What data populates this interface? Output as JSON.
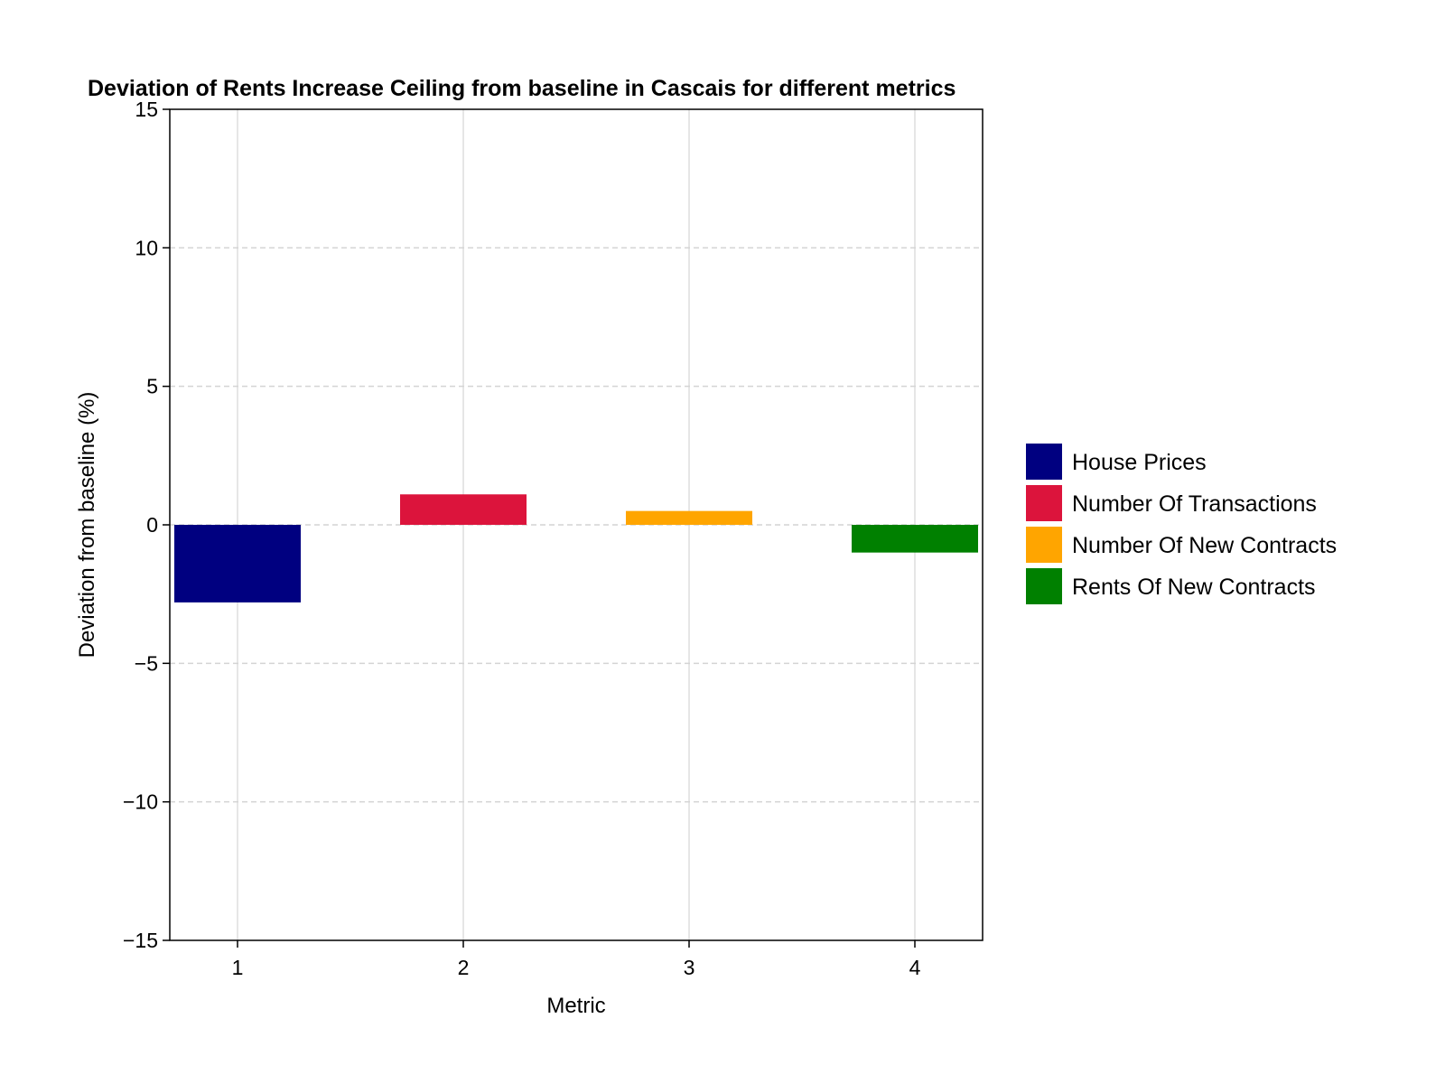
{
  "chart_data": {
    "type": "bar",
    "title": "Deviation of Rents Increase Ceiling from baseline in Cascais for different metrics",
    "xlabel": "Metric",
    "ylabel": "Deviation from baseline (%)",
    "ylim": [
      -15,
      15
    ],
    "xlim": [
      0.7,
      4.3
    ],
    "yticks": [
      -15,
      -10,
      -5,
      0,
      5,
      10,
      15
    ],
    "ytick_labels": [
      "−15",
      "−10",
      "−5",
      "0",
      "5",
      "10",
      "15"
    ],
    "xticks": [
      1,
      2,
      3,
      4
    ],
    "xtick_labels": [
      "1",
      "2",
      "3",
      "4"
    ],
    "grid": true,
    "legend_position": "right",
    "series": [
      {
        "name": "House Prices",
        "x": 1,
        "value": -2.8,
        "color": "#000080"
      },
      {
        "name": "Number Of Transactions",
        "x": 2,
        "value": 1.1,
        "color": "#DC143C"
      },
      {
        "name": "Number Of New Contracts",
        "x": 3,
        "value": 0.5,
        "color": "#FFA500"
      },
      {
        "name": "Rents Of New Contracts",
        "x": 4,
        "value": -1.0,
        "color": "#008000"
      }
    ]
  }
}
